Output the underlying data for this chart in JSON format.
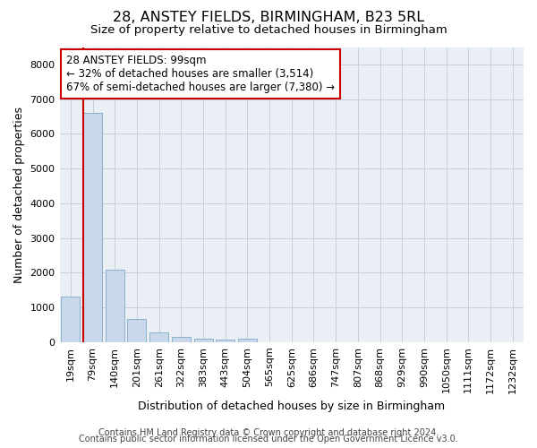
{
  "title_line1": "28, ANSTEY FIELDS, BIRMINGHAM, B23 5RL",
  "title_line2": "Size of property relative to detached houses in Birmingham",
  "xlabel": "Distribution of detached houses by size in Birmingham",
  "ylabel": "Number of detached properties",
  "categories": [
    "19sqm",
    "79sqm",
    "140sqm",
    "201sqm",
    "261sqm",
    "322sqm",
    "383sqm",
    "443sqm",
    "504sqm",
    "565sqm",
    "625sqm",
    "686sqm",
    "747sqm",
    "807sqm",
    "868sqm",
    "929sqm",
    "990sqm",
    "1050sqm",
    "1111sqm",
    "1172sqm",
    "1232sqm"
  ],
  "values": [
    1310,
    6610,
    2080,
    660,
    290,
    140,
    90,
    75,
    90,
    0,
    0,
    0,
    0,
    0,
    0,
    0,
    0,
    0,
    0,
    0,
    0
  ],
  "bar_color": "#c8d8ea",
  "bar_edge_color": "#8ab0cc",
  "vline_color": "#cc0000",
  "vline_x": 0.6,
  "annotation_text": "28 ANSTEY FIELDS: 99sqm\n← 32% of detached houses are smaller (3,514)\n67% of semi-detached houses are larger (7,380) →",
  "annotation_box_facecolor": "#ffffff",
  "annotation_box_edgecolor": "#cc0000",
  "ylim": [
    0,
    8500
  ],
  "yticks": [
    0,
    1000,
    2000,
    3000,
    4000,
    5000,
    6000,
    7000,
    8000
  ],
  "grid_color": "#c8d0dc",
  "bg_color": "#eaeff5",
  "footer_line1": "Contains HM Land Registry data © Crown copyright and database right 2024.",
  "footer_line2": "Contains public sector information licensed under the Open Government Licence v3.0.",
  "title_fontsize": 11.5,
  "subtitle_fontsize": 9.5,
  "axis_label_fontsize": 9,
  "tick_fontsize": 8,
  "annotation_fontsize": 8.5,
  "footer_fontsize": 7
}
